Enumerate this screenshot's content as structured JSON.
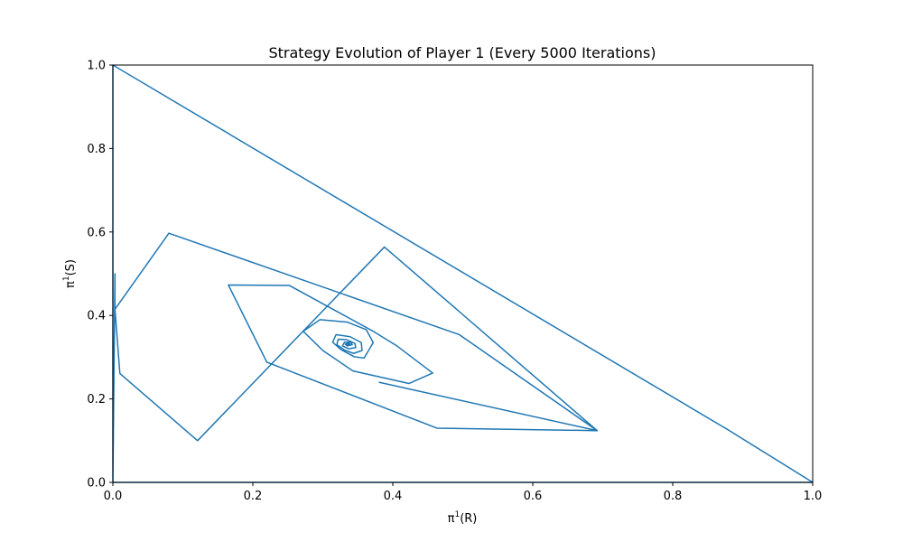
{
  "chart_data": {
    "type": "line",
    "title": "Strategy Evolution of Player 1 (Every 5000 Iterations)",
    "xlabel": {
      "base": "π",
      "sup": "1",
      "rest": "(R)"
    },
    "ylabel": {
      "base": "π",
      "sup": "1",
      "rest": "(S)"
    },
    "xlim": [
      0,
      1
    ],
    "ylim": [
      0,
      1
    ],
    "xticks": [
      "0.0",
      "0.2",
      "0.4",
      "0.6",
      "0.8",
      "1.0"
    ],
    "yticks": [
      "0.0",
      "0.2",
      "0.4",
      "0.6",
      "0.8",
      "1.0"
    ],
    "grid": false,
    "color": "#1f77b4",
    "series": [
      {
        "x": [
          0.0,
          0.0,
          1.0,
          0.88,
          0.0,
          0.0,
          0.003,
          0.003,
          0.01,
          0.121,
          0.388,
          0.692,
          0.463,
          0.22,
          0.165,
          0.252,
          0.371,
          0.405,
          0.457,
          0.423,
          0.343,
          0.3,
          0.272,
          0.296,
          0.335,
          0.362,
          0.372,
          0.359,
          0.345,
          0.326,
          0.314,
          0.319,
          0.339,
          0.355,
          0.356,
          0.344,
          0.331,
          0.32,
          0.322,
          0.334,
          0.346,
          0.347,
          0.337,
          0.328,
          0.331,
          0.34,
          0.342,
          0.335,
          0.332,
          0.337,
          0.339,
          0.334,
          0.333,
          0.337,
          0.336
        ],
        "y": [
          1.0,
          0.0,
          0.0,
          0.125,
          1.0,
          0.0,
          0.5,
          0.415,
          0.261,
          0.1,
          0.564,
          0.124,
          0.13,
          0.288,
          0.473,
          0.472,
          0.363,
          0.328,
          0.262,
          0.237,
          0.267,
          0.316,
          0.362,
          0.39,
          0.384,
          0.366,
          0.335,
          0.298,
          0.301,
          0.318,
          0.336,
          0.354,
          0.349,
          0.335,
          0.316,
          0.309,
          0.317,
          0.33,
          0.343,
          0.342,
          0.333,
          0.323,
          0.32,
          0.327,
          0.336,
          0.336,
          0.33,
          0.327,
          0.331,
          0.334,
          0.331,
          0.329,
          0.332,
          0.333,
          0.331
        ]
      },
      {
        "x": [
          0.003,
          0.08,
          0.495,
          0.692,
          0.38
        ],
        "y": [
          0.415,
          0.597,
          0.354,
          0.124,
          0.24
        ]
      }
    ]
  }
}
